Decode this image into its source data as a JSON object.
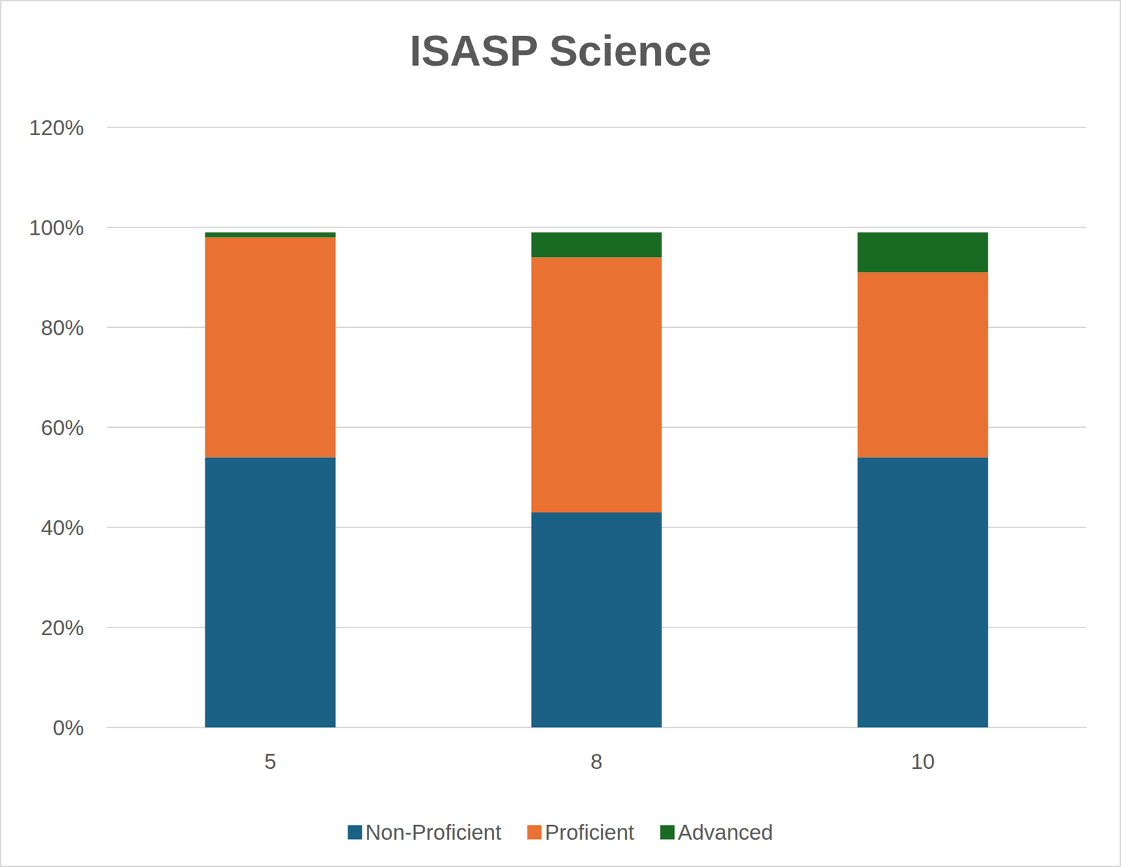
{
  "chart_data": {
    "type": "bar",
    "title": "ISASP Science",
    "categories": [
      "5",
      "8",
      "10"
    ],
    "series": [
      {
        "name": "Non-Proficient",
        "color": "#1a6185",
        "values": [
          54,
          43,
          54
        ]
      },
      {
        "name": "Proficient",
        "color": "#e97132",
        "values": [
          44,
          51,
          37
        ]
      },
      {
        "name": "Advanced",
        "color": "#196b24",
        "values": [
          1,
          5,
          8
        ]
      }
    ],
    "stacked": true,
    "ylim": [
      0,
      120
    ],
    "yticks": [
      {
        "value": 0,
        "label": "0%"
      },
      {
        "value": 20,
        "label": "20%"
      },
      {
        "value": 40,
        "label": "40%"
      },
      {
        "value": 60,
        "label": "60%"
      },
      {
        "value": 80,
        "label": "80%"
      },
      {
        "value": 100,
        "label": "100%"
      },
      {
        "value": 120,
        "label": "120%"
      }
    ],
    "grid": true,
    "legend": "bottom"
  }
}
